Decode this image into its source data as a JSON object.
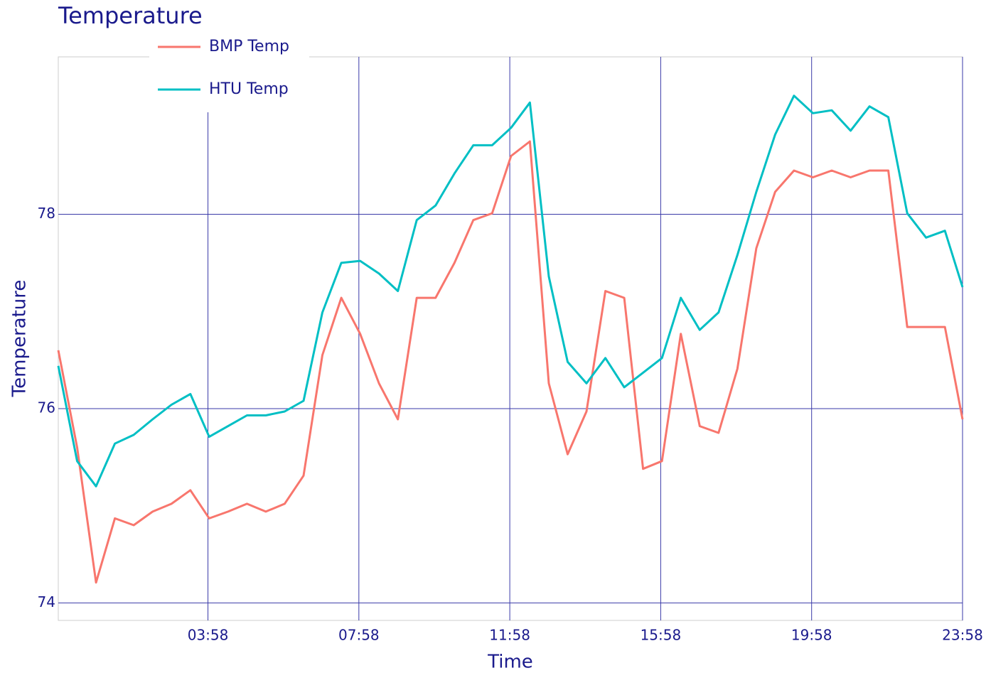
{
  "chart_data": {
    "type": "line",
    "title": "Temperature",
    "x_label": "Time",
    "y_label": "Temperature",
    "x": [
      "00:00",
      "00:30",
      "01:00",
      "01:30",
      "02:00",
      "02:30",
      "03:00",
      "03:30",
      "04:00",
      "04:30",
      "05:00",
      "05:30",
      "06:00",
      "06:30",
      "07:00",
      "07:30",
      "08:00",
      "08:30",
      "09:00",
      "09:30",
      "10:00",
      "10:30",
      "11:00",
      "11:30",
      "12:00",
      "12:30",
      "13:00",
      "13:30",
      "14:00",
      "14:30",
      "15:00",
      "15:30",
      "16:00",
      "16:30",
      "17:00",
      "17:30",
      "18:00",
      "18:30",
      "19:00",
      "19:30",
      "20:00",
      "20:30",
      "21:00",
      "21:30",
      "22:00",
      "22:30",
      "23:00",
      "23:30",
      "23:58"
    ],
    "series": [
      {
        "name": "BMP Temp",
        "color": "#f8766d",
        "values": [
          76.6,
          75.6,
          74.21,
          74.87,
          74.8,
          74.94,
          75.02,
          75.16,
          74.87,
          74.94,
          75.02,
          74.94,
          75.02,
          75.31,
          76.55,
          77.14,
          76.77,
          76.26,
          75.89,
          77.14,
          77.14,
          77.5,
          77.94,
          78.01,
          78.6,
          78.75,
          76.26,
          75.53,
          75.97,
          77.21,
          77.14,
          75.38,
          75.46,
          76.77,
          75.82,
          75.75,
          76.41,
          77.65,
          78.23,
          78.45,
          78.38,
          78.45,
          78.38,
          78.45,
          78.45,
          76.84,
          76.84,
          76.84,
          75.89
        ]
      },
      {
        "name": "HTU Temp",
        "color": "#00bfc4",
        "values": [
          76.44,
          75.46,
          75.2,
          75.64,
          75.73,
          75.89,
          76.04,
          76.15,
          75.71,
          75.82,
          75.93,
          75.93,
          75.97,
          76.08,
          76.99,
          77.5,
          77.52,
          77.39,
          77.21,
          77.94,
          78.09,
          78.42,
          78.71,
          78.71,
          78.89,
          79.15,
          77.36,
          76.48,
          76.26,
          76.52,
          76.22,
          76.37,
          76.52,
          77.14,
          76.81,
          76.99,
          77.58,
          78.23,
          78.82,
          79.22,
          79.04,
          79.07,
          78.86,
          79.11,
          79.0,
          78.01,
          77.76,
          77.83,
          77.25
        ]
      }
    ],
    "xlim": [
      "00:00",
      "23:58"
    ],
    "xticks": [
      "03:58",
      "07:58",
      "11:58",
      "15:58",
      "19:58",
      "23:58"
    ],
    "ylim": [
      73.82,
      79.62
    ],
    "yticks": [
      74,
      76,
      78
    ],
    "grid": true,
    "legend": "top-left"
  }
}
